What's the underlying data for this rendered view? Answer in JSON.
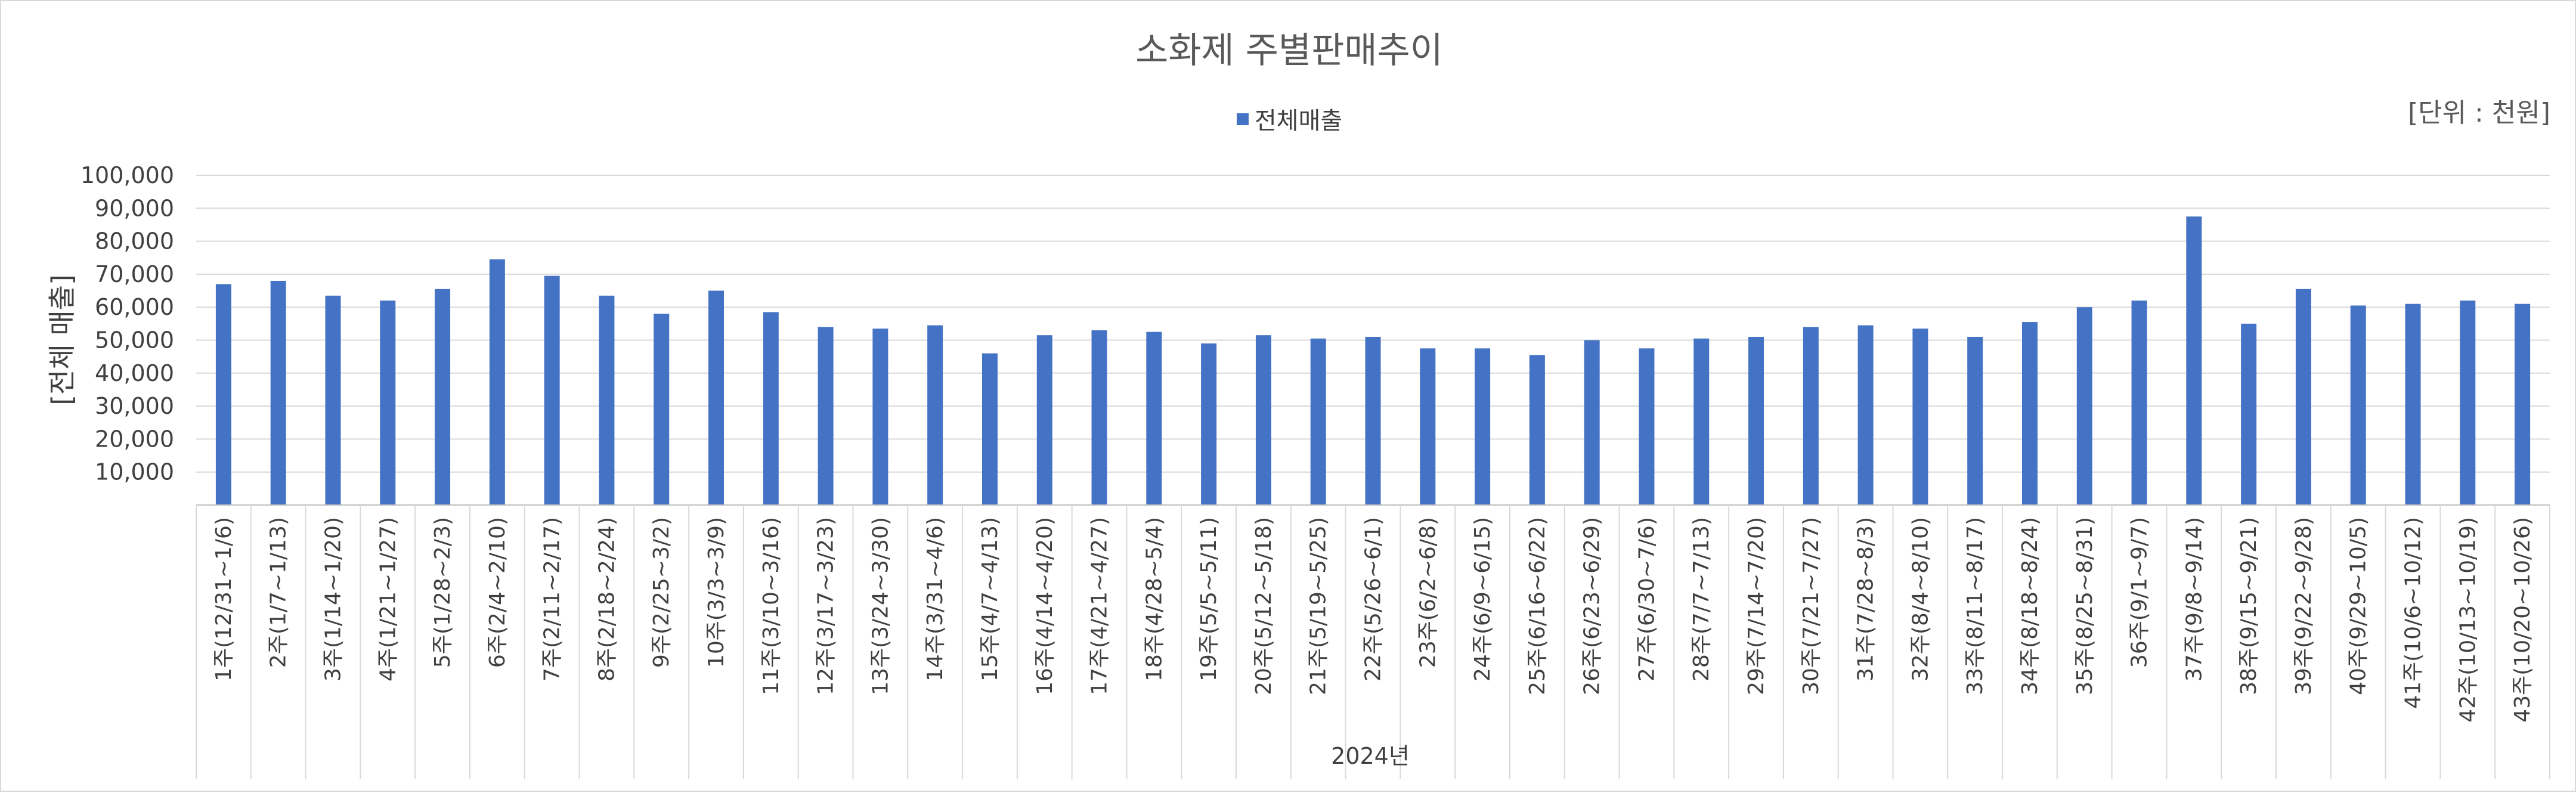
{
  "chart_data": {
    "type": "bar",
    "title": "소화제 주별판매추이",
    "unit_label": "[단위 : 천원]",
    "ylabel": "[전체 매출]",
    "xlabel": "2024년",
    "ylim": [
      0,
      100000
    ],
    "yticks": [
      "10,000",
      "20,000",
      "30,000",
      "40,000",
      "50,000",
      "60,000",
      "70,000",
      "80,000",
      "90,000",
      "100,000"
    ],
    "grid": true,
    "legend_position": "top",
    "bar_color": "#4472c4",
    "categories": [
      "1주(12/31~1/6)",
      "2주(1/7~1/13)",
      "3주(1/14~1/20)",
      "4주(1/21~1/27)",
      "5주(1/28~2/3)",
      "6주(2/4~2/10)",
      "7주(2/11~2/17)",
      "8주(2/18~2/24)",
      "9주(2/25~3/2)",
      "10주(3/3~3/9)",
      "11주(3/10~3/16)",
      "12주(3/17~3/23)",
      "13주(3/24~3/30)",
      "14주(3/31~4/6)",
      "15주(4/7~4/13)",
      "16주(4/14~4/20)",
      "17주(4/21~4/27)",
      "18주(4/28~5/4)",
      "19주(5/5~5/11)",
      "20주(5/12~5/18)",
      "21주(5/19~5/25)",
      "22주(5/26~6/1)",
      "23주(6/2~6/8)",
      "24주(6/9~6/15)",
      "25주(6/16~6/22)",
      "26주(6/23~6/29)",
      "27주(6/30~7/6)",
      "28주(7/7~7/13)",
      "29주(7/14~7/20)",
      "30주(7/21~7/27)",
      "31주(7/28~8/3)",
      "32주(8/4~8/10)",
      "33주(8/11~8/17)",
      "34주(8/18~8/24)",
      "35주(8/25~8/31)",
      "36주(9/1~9/7)",
      "37주(9/8~9/14)",
      "38주(9/15~9/21)",
      "39주(9/22~9/28)",
      "40주(9/29~10/5)",
      "41주(10/6~10/12)",
      "42주(10/13~10/19)",
      "43주(10/20~10/26)"
    ],
    "series": [
      {
        "name": "전체매출",
        "values": [
          67000,
          68000,
          63500,
          62000,
          65500,
          74500,
          69500,
          63500,
          58000,
          65000,
          58500,
          54000,
          53500,
          54500,
          46000,
          51500,
          53000,
          52500,
          49000,
          51500,
          50500,
          51000,
          47500,
          47500,
          45500,
          50000,
          47500,
          50500,
          51000,
          54000,
          54500,
          53500,
          51000,
          55500,
          60000,
          62000,
          87500,
          55000,
          65500,
          60500,
          61000,
          62000,
          61000
        ]
      }
    ]
  }
}
